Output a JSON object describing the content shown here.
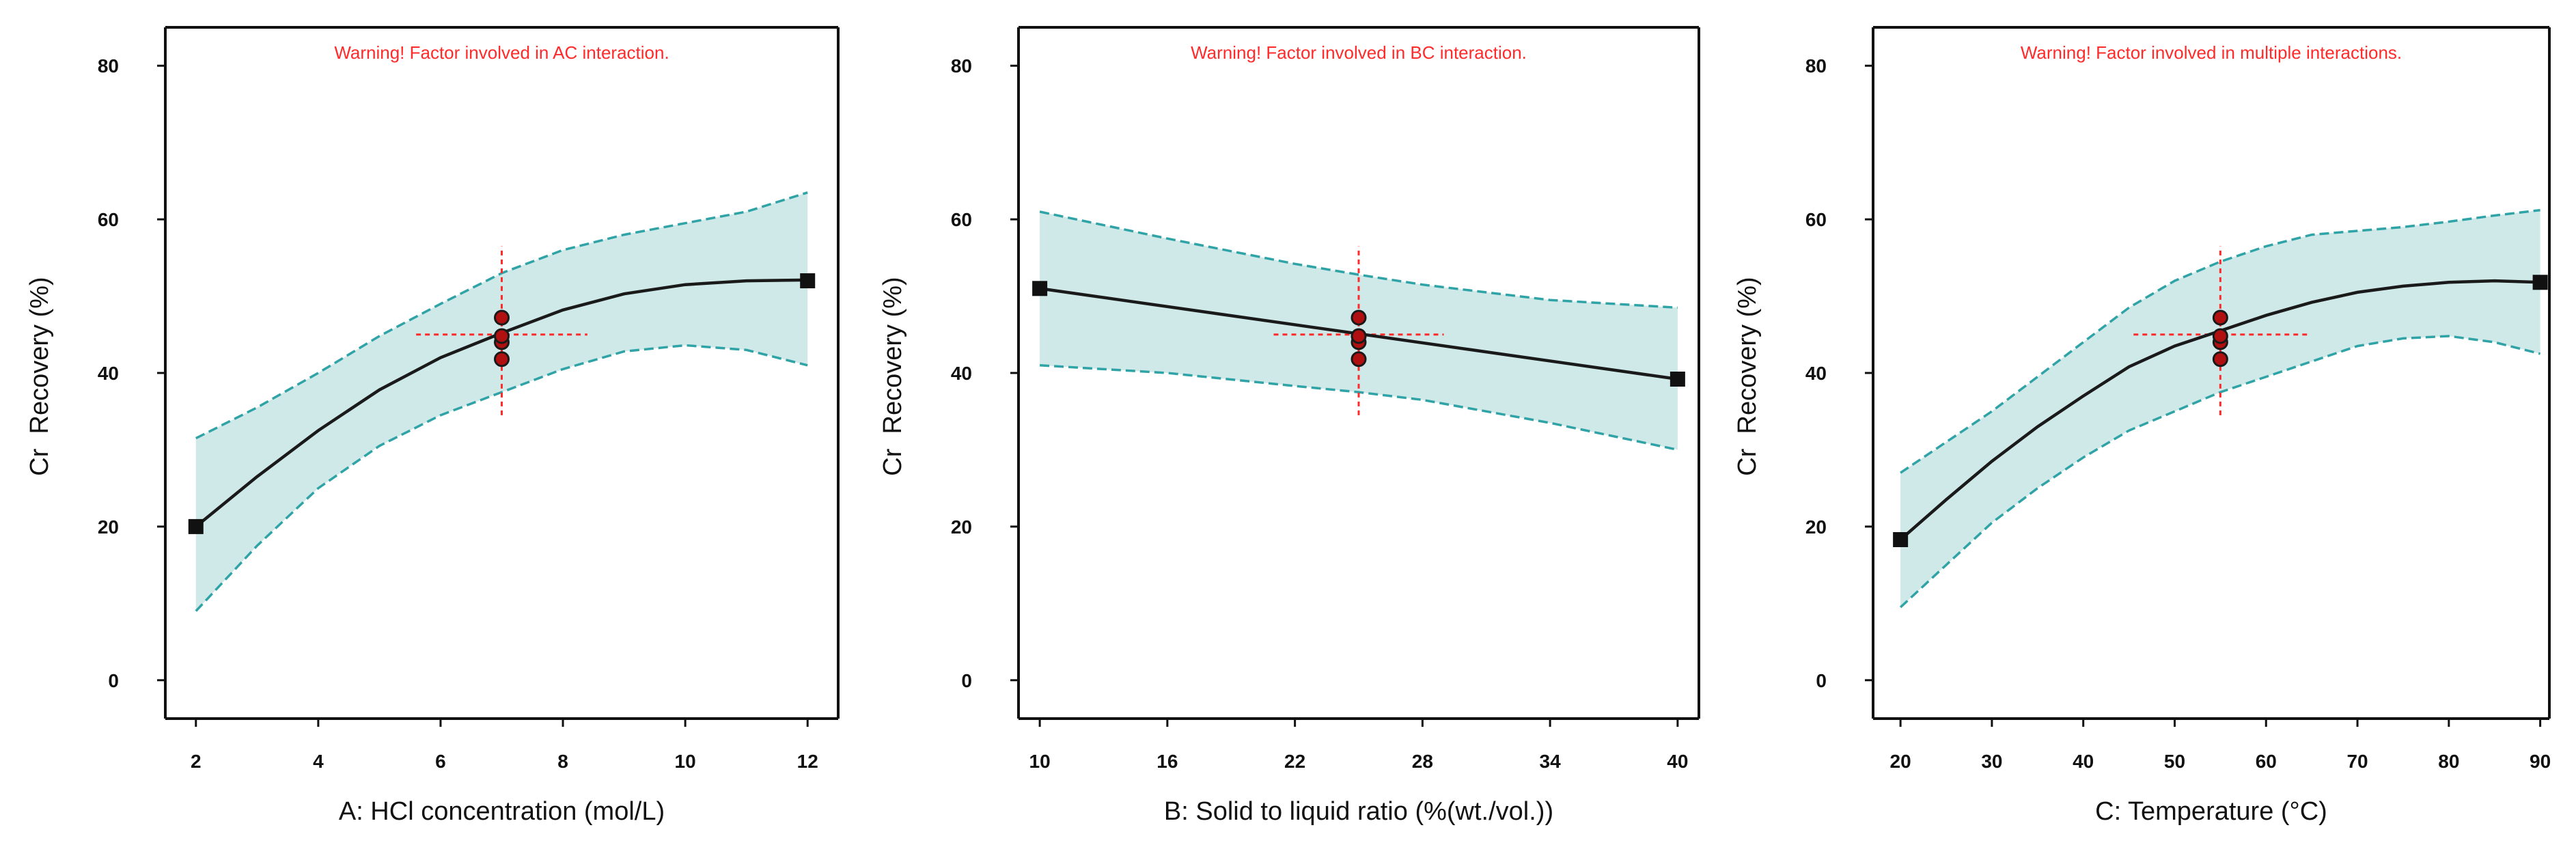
{
  "colors": {
    "band_fill": "#cfe8e8",
    "band_edge": "#2fa3a6",
    "curve": "#1a1a1a",
    "warning": "#ff2a2a",
    "design_point": "#b01010",
    "crosshair": "#ff2a2a"
  },
  "chart_data": [
    {
      "type": "line",
      "panel": "A",
      "title": "Warning! Factor involved in AC interaction.",
      "xlabel": "A: HCl concentration (mol/L)",
      "ylabel": "Cr  Recovery (%)",
      "xlim": [
        1.5,
        12.5
      ],
      "ylim": [
        -5,
        85
      ],
      "xticks": [
        2,
        4,
        6,
        8,
        10,
        12
      ],
      "yticks": [
        0,
        20,
        40,
        60,
        80
      ],
      "prediction": {
        "x": [
          2,
          3,
          4,
          5,
          6,
          7,
          8,
          9,
          10,
          11,
          12
        ],
        "y": [
          20.0,
          26.5,
          32.5,
          37.8,
          42.0,
          45.2,
          48.2,
          50.3,
          51.5,
          52.0,
          52.1
        ]
      },
      "ci_lower": {
        "x": [
          2,
          3,
          4,
          5,
          6,
          7,
          8,
          9,
          10,
          11,
          12
        ],
        "y": [
          9.0,
          17.5,
          25.0,
          30.5,
          34.5,
          37.5,
          40.5,
          42.8,
          43.6,
          43.0,
          41.0
        ]
      },
      "ci_upper": {
        "x": [
          2,
          3,
          4,
          5,
          6,
          7,
          8,
          9,
          10,
          11,
          12
        ],
        "y": [
          31.5,
          35.5,
          40.0,
          44.8,
          49.0,
          53.0,
          56.0,
          58.0,
          59.5,
          61.0,
          63.5
        ]
      },
      "endpoints": [
        {
          "x": 2,
          "y": 20.0
        },
        {
          "x": 12,
          "y": 52.0
        }
      ],
      "design_points": {
        "x": 7,
        "y": [
          41.8,
          44.0,
          44.8,
          47.2
        ]
      },
      "center": {
        "x": 7,
        "y": 45.0,
        "x_span": [
          5.6,
          8.4
        ],
        "y_span": [
          34.5,
          56.5
        ]
      }
    },
    {
      "type": "line",
      "panel": "B",
      "title": "Warning! Factor involved in BC interaction.",
      "xlabel": "B: Solid to liquid ratio (%(wt./vol.))",
      "ylabel": "Cr  Recovery (%)",
      "xlim": [
        9,
        41
      ],
      "ylim": [
        -5,
        85
      ],
      "xticks": [
        10,
        16,
        22,
        28,
        34,
        40
      ],
      "yticks": [
        0,
        20,
        40,
        60,
        80
      ],
      "prediction": {
        "x": [
          10,
          40
        ],
        "y": [
          51.0,
          39.2
        ]
      },
      "ci_lower": {
        "x": [
          10,
          16,
          22,
          25,
          28,
          34,
          40
        ],
        "y": [
          41.0,
          40.0,
          38.3,
          37.5,
          36.5,
          33.5,
          30.0
        ]
      },
      "ci_upper": {
        "x": [
          10,
          16,
          22,
          25,
          28,
          34,
          40
        ],
        "y": [
          61.0,
          57.5,
          54.2,
          52.8,
          51.5,
          49.5,
          48.5
        ]
      },
      "endpoints": [
        {
          "x": 10,
          "y": 51.0
        },
        {
          "x": 40,
          "y": 39.2
        }
      ],
      "design_points": {
        "x": 25,
        "y": [
          41.8,
          44.0,
          44.8,
          47.2
        ]
      },
      "center": {
        "x": 25,
        "y": 45.0,
        "x_span": [
          21,
          29
        ],
        "y_span": [
          34.5,
          56.5
        ]
      }
    },
    {
      "type": "line",
      "panel": "C",
      "title": "Warning! Factor involved in multiple interactions.",
      "xlabel": "C: Temperature (°C)",
      "ylabel": "Cr  Recovery (%)",
      "xlim": [
        17,
        91
      ],
      "ylim": [
        -5,
        85
      ],
      "xticks": [
        20,
        30,
        40,
        50,
        60,
        70,
        80,
        90
      ],
      "yticks": [
        0,
        20,
        40,
        60,
        80
      ],
      "prediction": {
        "x": [
          20,
          25,
          30,
          35,
          40,
          45,
          50,
          55,
          60,
          65,
          70,
          75,
          80,
          85,
          90
        ],
        "y": [
          18.3,
          23.5,
          28.5,
          33.0,
          37.0,
          40.8,
          43.5,
          45.5,
          47.5,
          49.2,
          50.5,
          51.3,
          51.8,
          52.0,
          51.8
        ]
      },
      "ci_lower": {
        "x": [
          20,
          25,
          30,
          35,
          40,
          45,
          50,
          55,
          60,
          65,
          70,
          75,
          80,
          85,
          90
        ],
        "y": [
          9.5,
          15.0,
          20.5,
          25.0,
          29.0,
          32.5,
          35.0,
          37.5,
          39.5,
          41.5,
          43.5,
          44.5,
          44.8,
          44.0,
          42.5
        ]
      },
      "ci_upper": {
        "x": [
          20,
          25,
          30,
          35,
          40,
          45,
          50,
          55,
          60,
          65,
          70,
          75,
          80,
          85,
          90
        ],
        "y": [
          27.0,
          31.0,
          35.0,
          39.5,
          44.0,
          48.5,
          52.0,
          54.5,
          56.5,
          58.0,
          58.5,
          59.0,
          59.7,
          60.5,
          61.2
        ]
      },
      "endpoints": [
        {
          "x": 20,
          "y": 18.3
        },
        {
          "x": 90,
          "y": 51.8
        }
      ],
      "design_points": {
        "x": 55,
        "y": [
          41.8,
          44.0,
          44.8,
          47.2
        ]
      },
      "center": {
        "x": 55,
        "y": 45.0,
        "x_span": [
          45.5,
          64.5
        ],
        "y_span": [
          34.5,
          56.5
        ]
      }
    }
  ]
}
